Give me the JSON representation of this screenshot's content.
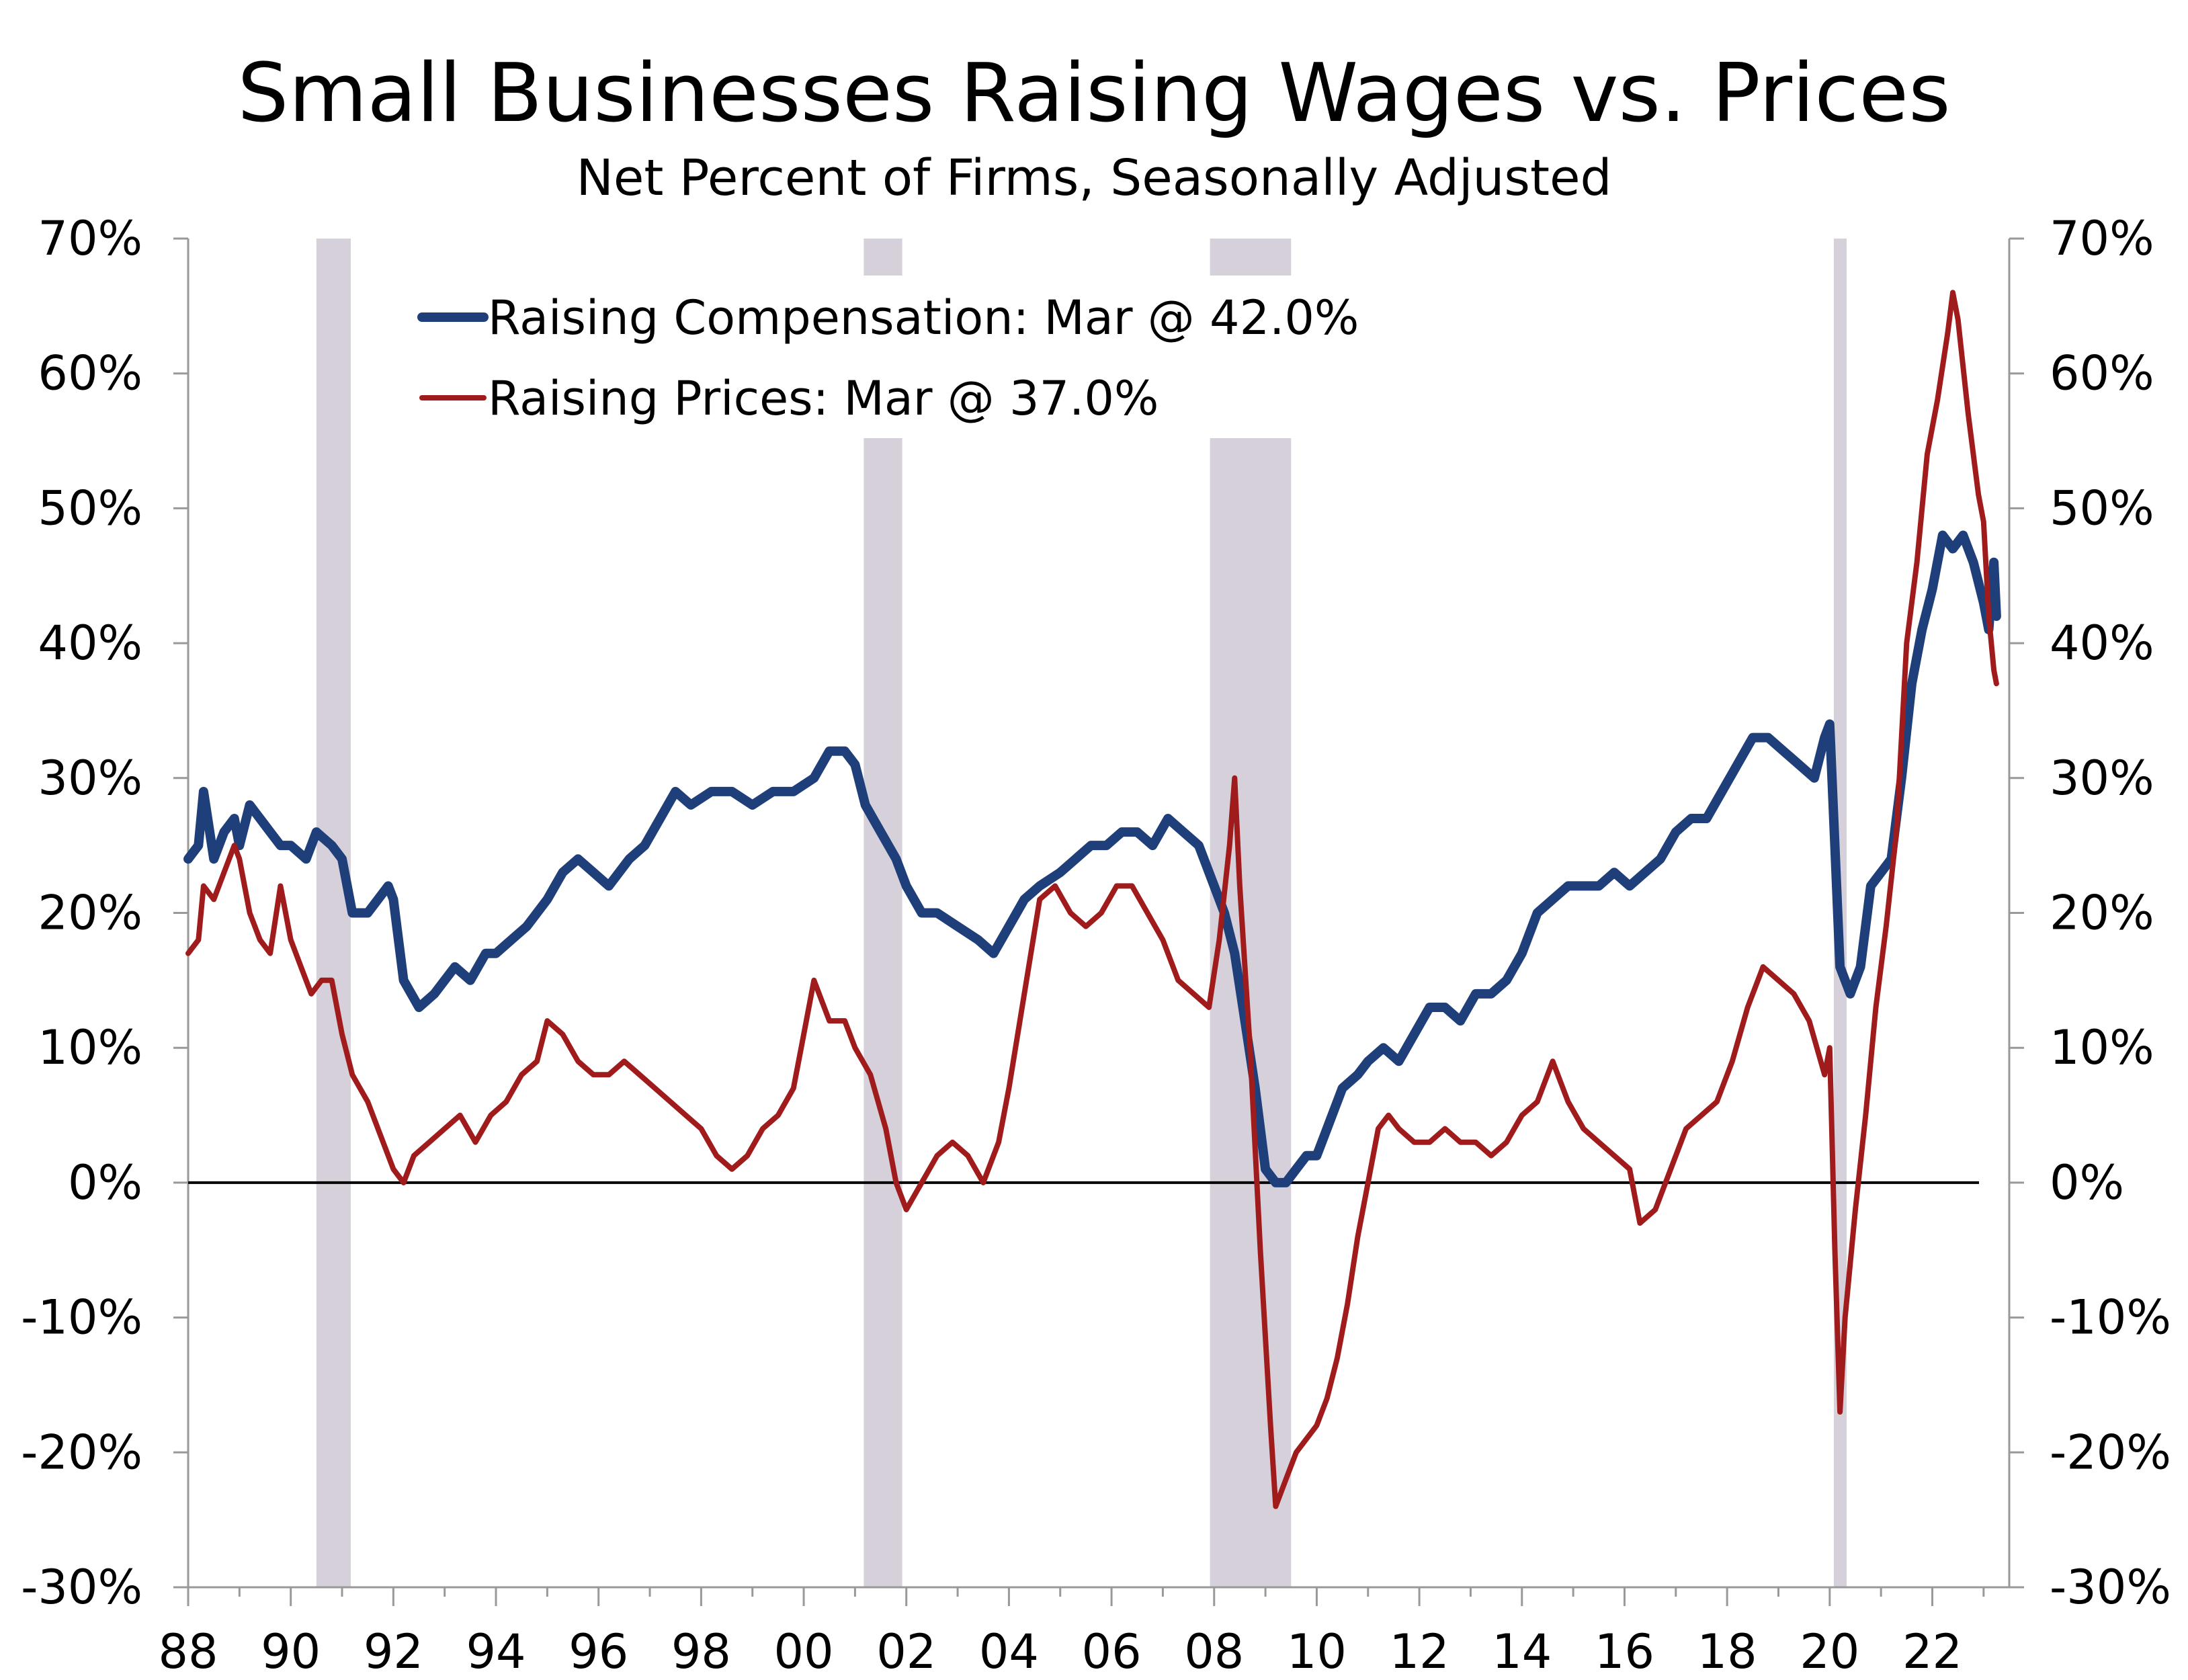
{
  "chart_data": {
    "type": "line",
    "title": "Small Businesses Raising Wages vs. Prices",
    "subtitle": "Net Percent of Firms, Seasonally Adjusted",
    "ylim": [
      -30,
      70
    ],
    "y_ticks": [
      -30,
      -20,
      -10,
      0,
      10,
      20,
      30,
      40,
      50,
      60,
      70
    ],
    "y_tick_labels": [
      "-30%",
      "-20%",
      "-10%",
      "0%",
      "10%",
      "20%",
      "30%",
      "40%",
      "50%",
      "60%",
      "70%"
    ],
    "xlim": [
      1988,
      2023.5
    ],
    "x_ticks": [
      1988,
      1990,
      1992,
      1994,
      1996,
      1998,
      2000,
      2002,
      2004,
      2006,
      2008,
      2010,
      2012,
      2014,
      2016,
      2018,
      2020,
      2022
    ],
    "x_tick_labels": [
      "88",
      "90",
      "92",
      "94",
      "96",
      "98",
      "00",
      "02",
      "04",
      "06",
      "08",
      "10",
      "12",
      "14",
      "16",
      "18",
      "20",
      "22"
    ],
    "legend": {
      "placement": "top-left",
      "entries": [
        {
          "series": 0,
          "text": "Raising Compensation: Mar @ 42.0%"
        },
        {
          "series": 1,
          "text": "Raising Prices: Mar @ 37.0%"
        }
      ]
    },
    "recessions": [
      [
        1990.5,
        1991.17
      ],
      [
        2001.17,
        2001.92
      ],
      [
        2007.92,
        2009.5
      ],
      [
        2020.08,
        2020.33
      ]
    ],
    "series": [
      {
        "name": "Raising Compensation",
        "color": "#1f3f7a",
        "points": [
          [
            1988.0,
            24
          ],
          [
            1988.2,
            25
          ],
          [
            1988.3,
            29
          ],
          [
            1988.5,
            24
          ],
          [
            1988.7,
            26
          ],
          [
            1988.9,
            27
          ],
          [
            1989.0,
            25
          ],
          [
            1989.2,
            28
          ],
          [
            1989.4,
            27
          ],
          [
            1989.6,
            26
          ],
          [
            1989.8,
            25
          ],
          [
            1990.0,
            25
          ],
          [
            1990.3,
            24
          ],
          [
            1990.5,
            26
          ],
          [
            1990.8,
            25
          ],
          [
            1991.0,
            24
          ],
          [
            1991.2,
            20
          ],
          [
            1991.5,
            20
          ],
          [
            1991.7,
            21
          ],
          [
            1991.9,
            22
          ],
          [
            1992.0,
            21
          ],
          [
            1992.2,
            15
          ],
          [
            1992.5,
            13
          ],
          [
            1992.8,
            14
          ],
          [
            1993.0,
            15
          ],
          [
            1993.2,
            16
          ],
          [
            1993.5,
            15
          ],
          [
            1993.8,
            17
          ],
          [
            1994.0,
            17
          ],
          [
            1994.3,
            18
          ],
          [
            1994.6,
            19
          ],
          [
            1995.0,
            21
          ],
          [
            1995.3,
            23
          ],
          [
            1995.6,
            24
          ],
          [
            1995.9,
            23
          ],
          [
            1996.2,
            22
          ],
          [
            1996.6,
            24
          ],
          [
            1996.9,
            25
          ],
          [
            1997.2,
            27
          ],
          [
            1997.5,
            29
          ],
          [
            1997.8,
            28
          ],
          [
            1998.2,
            29
          ],
          [
            1998.6,
            29
          ],
          [
            1999.0,
            28
          ],
          [
            1999.4,
            29
          ],
          [
            1999.8,
            29
          ],
          [
            2000.2,
            30
          ],
          [
            2000.5,
            32
          ],
          [
            2000.8,
            32
          ],
          [
            2001.0,
            31
          ],
          [
            2001.2,
            28
          ],
          [
            2001.5,
            26
          ],
          [
            2001.8,
            24
          ],
          [
            2002.0,
            22
          ],
          [
            2002.3,
            20
          ],
          [
            2002.6,
            20
          ],
          [
            2003.0,
            19
          ],
          [
            2003.4,
            18
          ],
          [
            2003.7,
            17
          ],
          [
            2004.0,
            19
          ],
          [
            2004.3,
            21
          ],
          [
            2004.6,
            22
          ],
          [
            2005.0,
            23
          ],
          [
            2005.3,
            24
          ],
          [
            2005.6,
            25
          ],
          [
            2005.9,
            25
          ],
          [
            2006.2,
            26
          ],
          [
            2006.5,
            26
          ],
          [
            2006.8,
            25
          ],
          [
            2007.1,
            27
          ],
          [
            2007.4,
            26
          ],
          [
            2007.7,
            25
          ],
          [
            2008.0,
            22
          ],
          [
            2008.2,
            20
          ],
          [
            2008.4,
            17
          ],
          [
            2008.6,
            12
          ],
          [
            2008.8,
            7
          ],
          [
            2009.0,
            1
          ],
          [
            2009.2,
            0
          ],
          [
            2009.4,
            0
          ],
          [
            2009.6,
            1
          ],
          [
            2009.8,
            2
          ],
          [
            2010.0,
            2
          ],
          [
            2010.2,
            4
          ],
          [
            2010.5,
            7
          ],
          [
            2010.8,
            8
          ],
          [
            2011.0,
            9
          ],
          [
            2011.3,
            10
          ],
          [
            2011.6,
            9
          ],
          [
            2011.9,
            11
          ],
          [
            2012.2,
            13
          ],
          [
            2012.5,
            13
          ],
          [
            2012.8,
            12
          ],
          [
            2013.1,
            14
          ],
          [
            2013.4,
            14
          ],
          [
            2013.7,
            15
          ],
          [
            2014.0,
            17
          ],
          [
            2014.3,
            20
          ],
          [
            2014.6,
            21
          ],
          [
            2014.9,
            22
          ],
          [
            2015.2,
            22
          ],
          [
            2015.5,
            22
          ],
          [
            2015.8,
            23
          ],
          [
            2016.1,
            22
          ],
          [
            2016.4,
            23
          ],
          [
            2016.7,
            24
          ],
          [
            2017.0,
            26
          ],
          [
            2017.3,
            27
          ],
          [
            2017.6,
            27
          ],
          [
            2017.9,
            29
          ],
          [
            2018.2,
            31
          ],
          [
            2018.5,
            33
          ],
          [
            2018.8,
            33
          ],
          [
            2019.1,
            32
          ],
          [
            2019.4,
            31
          ],
          [
            2019.7,
            30
          ],
          [
            2019.9,
            33
          ],
          [
            2020.0,
            34
          ],
          [
            2020.1,
            25
          ],
          [
            2020.2,
            16
          ],
          [
            2020.4,
            14
          ],
          [
            2020.6,
            16
          ],
          [
            2020.8,
            22
          ],
          [
            2021.0,
            23
          ],
          [
            2021.2,
            24
          ],
          [
            2021.4,
            30
          ],
          [
            2021.6,
            37
          ],
          [
            2021.8,
            41
          ],
          [
            2022.0,
            44
          ],
          [
            2022.2,
            48
          ],
          [
            2022.4,
            47
          ],
          [
            2022.6,
            48
          ],
          [
            2022.8,
            46
          ],
          [
            2023.0,
            43
          ],
          [
            2023.1,
            41
          ],
          [
            2023.2,
            46
          ],
          [
            2023.25,
            42
          ]
        ]
      },
      {
        "name": "Raising Prices",
        "color": "#a01c1c",
        "points": [
          [
            1988.0,
            17
          ],
          [
            1988.2,
            18
          ],
          [
            1988.3,
            22
          ],
          [
            1988.5,
            21
          ],
          [
            1988.7,
            23
          ],
          [
            1988.9,
            25
          ],
          [
            1989.0,
            24
          ],
          [
            1989.2,
            20
          ],
          [
            1989.4,
            18
          ],
          [
            1989.6,
            17
          ],
          [
            1989.8,
            22
          ],
          [
            1990.0,
            18
          ],
          [
            1990.2,
            16
          ],
          [
            1990.4,
            14
          ],
          [
            1990.6,
            15
          ],
          [
            1990.8,
            15
          ],
          [
            1991.0,
            11
          ],
          [
            1991.2,
            8
          ],
          [
            1991.5,
            6
          ],
          [
            1991.8,
            3
          ],
          [
            1992.0,
            1
          ],
          [
            1992.2,
            0
          ],
          [
            1992.4,
            2
          ],
          [
            1992.7,
            3
          ],
          [
            1993.0,
            4
          ],
          [
            1993.3,
            5
          ],
          [
            1993.6,
            3
          ],
          [
            1993.9,
            5
          ],
          [
            1994.2,
            6
          ],
          [
            1994.5,
            8
          ],
          [
            1994.8,
            9
          ],
          [
            1995.0,
            12
          ],
          [
            1995.3,
            11
          ],
          [
            1995.6,
            9
          ],
          [
            1995.9,
            8
          ],
          [
            1996.2,
            8
          ],
          [
            1996.5,
            9
          ],
          [
            1996.8,
            8
          ],
          [
            1997.1,
            7
          ],
          [
            1997.4,
            6
          ],
          [
            1997.7,
            5
          ],
          [
            1998.0,
            4
          ],
          [
            1998.3,
            2
          ],
          [
            1998.6,
            1
          ],
          [
            1998.9,
            2
          ],
          [
            1999.2,
            4
          ],
          [
            1999.5,
            5
          ],
          [
            1999.8,
            7
          ],
          [
            2000.0,
            11
          ],
          [
            2000.2,
            15
          ],
          [
            2000.5,
            12
          ],
          [
            2000.8,
            12
          ],
          [
            2001.0,
            10
          ],
          [
            2001.3,
            8
          ],
          [
            2001.6,
            4
          ],
          [
            2001.8,
            0
          ],
          [
            2002.0,
            -2
          ],
          [
            2002.3,
            0
          ],
          [
            2002.6,
            2
          ],
          [
            2002.9,
            3
          ],
          [
            2003.2,
            2
          ],
          [
            2003.5,
            0
          ],
          [
            2003.8,
            3
          ],
          [
            2004.0,
            7
          ],
          [
            2004.3,
            14
          ],
          [
            2004.6,
            21
          ],
          [
            2004.9,
            22
          ],
          [
            2005.2,
            20
          ],
          [
            2005.5,
            19
          ],
          [
            2005.8,
            20
          ],
          [
            2006.1,
            22
          ],
          [
            2006.4,
            22
          ],
          [
            2006.7,
            20
          ],
          [
            2007.0,
            18
          ],
          [
            2007.3,
            15
          ],
          [
            2007.6,
            14
          ],
          [
            2007.9,
            13
          ],
          [
            2008.1,
            18
          ],
          [
            2008.3,
            25
          ],
          [
            2008.4,
            30
          ],
          [
            2008.5,
            22
          ],
          [
            2008.7,
            10
          ],
          [
            2008.9,
            -5
          ],
          [
            2009.1,
            -18
          ],
          [
            2009.2,
            -24
          ],
          [
            2009.4,
            -22
          ],
          [
            2009.6,
            -20
          ],
          [
            2009.8,
            -19
          ],
          [
            2010.0,
            -18
          ],
          [
            2010.2,
            -16
          ],
          [
            2010.4,
            -13
          ],
          [
            2010.6,
            -9
          ],
          [
            2010.8,
            -4
          ],
          [
            2011.0,
            0
          ],
          [
            2011.2,
            4
          ],
          [
            2011.4,
            5
          ],
          [
            2011.6,
            4
          ],
          [
            2011.9,
            3
          ],
          [
            2012.2,
            3
          ],
          [
            2012.5,
            4
          ],
          [
            2012.8,
            3
          ],
          [
            2013.1,
            3
          ],
          [
            2013.4,
            2
          ],
          [
            2013.7,
            3
          ],
          [
            2014.0,
            5
          ],
          [
            2014.3,
            6
          ],
          [
            2014.6,
            9
          ],
          [
            2014.9,
            6
          ],
          [
            2015.2,
            4
          ],
          [
            2015.5,
            3
          ],
          [
            2015.8,
            2
          ],
          [
            2016.1,
            1
          ],
          [
            2016.3,
            -3
          ],
          [
            2016.6,
            -2
          ],
          [
            2016.9,
            1
          ],
          [
            2017.2,
            4
          ],
          [
            2017.5,
            5
          ],
          [
            2017.8,
            6
          ],
          [
            2018.1,
            9
          ],
          [
            2018.4,
            13
          ],
          [
            2018.7,
            16
          ],
          [
            2019.0,
            15
          ],
          [
            2019.3,
            14
          ],
          [
            2019.6,
            12
          ],
          [
            2019.9,
            8
          ],
          [
            2020.0,
            10
          ],
          [
            2020.1,
            -5
          ],
          [
            2020.2,
            -17
          ],
          [
            2020.3,
            -10
          ],
          [
            2020.5,
            -2
          ],
          [
            2020.7,
            5
          ],
          [
            2020.9,
            13
          ],
          [
            2021.1,
            19
          ],
          [
            2021.3,
            26
          ],
          [
            2021.5,
            40
          ],
          [
            2021.7,
            46
          ],
          [
            2021.9,
            54
          ],
          [
            2022.1,
            58
          ],
          [
            2022.3,
            63
          ],
          [
            2022.4,
            66
          ],
          [
            2022.5,
            64
          ],
          [
            2022.7,
            57
          ],
          [
            2022.9,
            51
          ],
          [
            2023.0,
            49
          ],
          [
            2023.1,
            42
          ],
          [
            2023.2,
            38
          ],
          [
            2023.25,
            37
          ]
        ]
      }
    ]
  }
}
